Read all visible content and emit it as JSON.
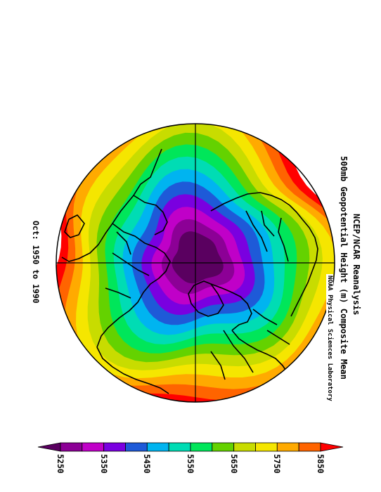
{
  "title_line1": "NCEP/NCAR Reanalysis",
  "title_line2": "500mb Geopotential Height (m) Composite Mean",
  "period": "Oct: 1950 to 1990",
  "credit": "NOAA Physical Sciences Laboratory",
  "colorbar": {
    "ticks": [
      "5250",
      "5350",
      "5450",
      "5550",
      "5650",
      "5750",
      "5850"
    ],
    "colors": [
      "#5a0060",
      "#8c0096",
      "#c000c8",
      "#7a00e0",
      "#1e5ad8",
      "#00b4f0",
      "#00dcb4",
      "#00e65a",
      "#64d200",
      "#c8dc00",
      "#f5e600",
      "#ffaa00",
      "#ff6400",
      "#ff0000"
    ]
  },
  "contours": {
    "levels": [
      5250,
      5300,
      5350,
      5400,
      5450,
      5500,
      5550,
      5600,
      5650,
      5700,
      5750,
      5800,
      5850
    ],
    "fill_colors": [
      "#5a0060",
      "#8c0096",
      "#c000c8",
      "#7a00e0",
      "#1e5ad8",
      "#00b4f0",
      "#00dcb4",
      "#00e65a",
      "#64d200",
      "#c8dc00",
      "#f5e600",
      "#ffaa00",
      "#ff6400",
      "#ff0000"
    ]
  }
}
